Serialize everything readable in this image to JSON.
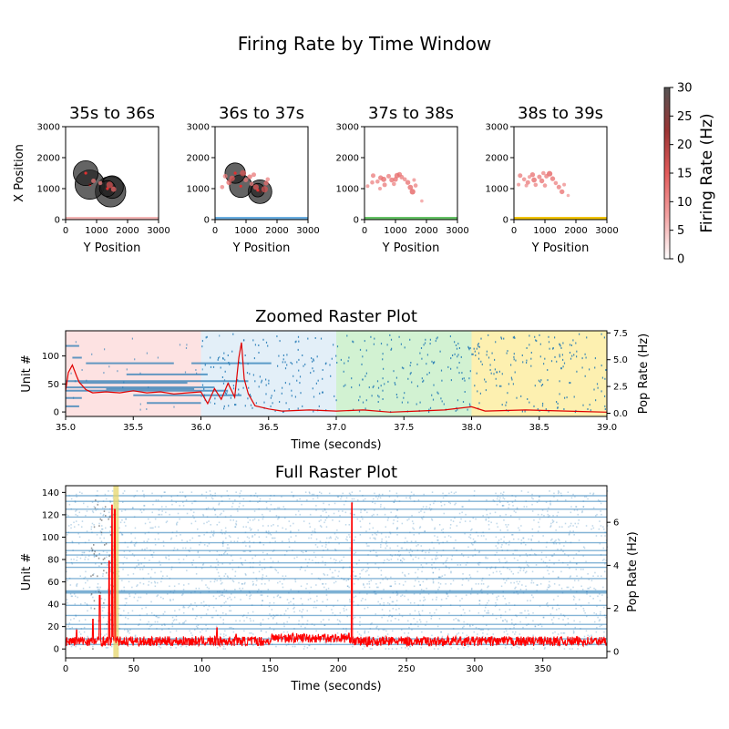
{
  "figure": {
    "title": "Firing Rate by Time Window"
  },
  "chart_data": [
    {
      "type": "scatter",
      "panel": "window-1",
      "title": "35s to 36s",
      "xlabel": "Y Position",
      "ylabel": "X Position",
      "xlim": [
        0,
        3000
      ],
      "ylim": [
        0,
        3000
      ],
      "xticks": [
        "0",
        "1000",
        "2000",
        "3000"
      ],
      "yticks": [
        "0",
        "1000",
        "2000",
        "3000"
      ],
      "band_color": "#f4b6b6",
      "points": [
        {
          "x": 650,
          "y": 1500,
          "rate": 22
        },
        {
          "x": 780,
          "y": 1130,
          "rate": 26
        },
        {
          "x": 1450,
          "y": 900,
          "rate": 27
        },
        {
          "x": 1500,
          "y": 1050,
          "rate": 20
        },
        {
          "x": 1350,
          "y": 1000,
          "rate": 14
        },
        {
          "x": 1420,
          "y": 1120,
          "rate": 9
        },
        {
          "x": 1550,
          "y": 980,
          "rate": 6
        },
        {
          "x": 900,
          "y": 1250,
          "rate": 4
        },
        {
          "x": 1120,
          "y": 1180,
          "rate": 3
        }
      ]
    },
    {
      "type": "scatter",
      "panel": "window-2",
      "title": "36s to 37s",
      "xlabel": "Y Position",
      "ylabel": "",
      "xlim": [
        0,
        3000
      ],
      "ylim": [
        0,
        3000
      ],
      "xticks": [
        "0",
        "1000",
        "2000",
        "3000"
      ],
      "yticks": [
        "0",
        "1000",
        "2000",
        "3000"
      ],
      "band_color": "#6aaee0",
      "points": [
        {
          "x": 650,
          "y": 1500,
          "rate": 18
        },
        {
          "x": 830,
          "y": 1080,
          "rate": 20
        },
        {
          "x": 1450,
          "y": 900,
          "rate": 21
        },
        {
          "x": 1380,
          "y": 950,
          "rate": 12
        },
        {
          "x": 1600,
          "y": 980,
          "rate": 9
        },
        {
          "x": 330,
          "y": 1400,
          "rate": 4
        },
        {
          "x": 230,
          "y": 1050,
          "rate": 3
        },
        {
          "x": 450,
          "y": 1200,
          "rate": 6
        },
        {
          "x": 550,
          "y": 1330,
          "rate": 7
        },
        {
          "x": 900,
          "y": 1500,
          "rate": 8
        },
        {
          "x": 1120,
          "y": 1380,
          "rate": 5
        },
        {
          "x": 1250,
          "y": 1450,
          "rate": 4
        },
        {
          "x": 1180,
          "y": 1150,
          "rate": 3
        },
        {
          "x": 1700,
          "y": 1300,
          "rate": 3
        },
        {
          "x": 990,
          "y": 1280,
          "rate": 4
        },
        {
          "x": 1650,
          "y": 1180,
          "rate": 5
        },
        {
          "x": 1320,
          "y": 1050,
          "rate": 7
        }
      ]
    },
    {
      "type": "scatter",
      "panel": "window-3",
      "title": "37s to 38s",
      "xlabel": "Y Position",
      "ylabel": "",
      "xlim": [
        0,
        3000
      ],
      "ylim": [
        0,
        3000
      ],
      "xticks": [
        "0",
        "1000",
        "2000",
        "3000"
      ],
      "yticks": [
        "0",
        "1000",
        "2000",
        "3000"
      ],
      "band_color": "#66c266",
      "points": [
        {
          "x": 100,
          "y": 1080,
          "rate": 2
        },
        {
          "x": 250,
          "y": 1200,
          "rate": 3
        },
        {
          "x": 280,
          "y": 1420,
          "rate": 4
        },
        {
          "x": 420,
          "y": 1230,
          "rate": 3
        },
        {
          "x": 520,
          "y": 1350,
          "rate": 5
        },
        {
          "x": 620,
          "y": 1300,
          "rate": 6
        },
        {
          "x": 650,
          "y": 1120,
          "rate": 4
        },
        {
          "x": 780,
          "y": 1400,
          "rate": 4
        },
        {
          "x": 880,
          "y": 1280,
          "rate": 5
        },
        {
          "x": 950,
          "y": 1150,
          "rate": 3
        },
        {
          "x": 1050,
          "y": 1420,
          "rate": 6
        },
        {
          "x": 1130,
          "y": 1460,
          "rate": 5
        },
        {
          "x": 1200,
          "y": 1370,
          "rate": 4
        },
        {
          "x": 1300,
          "y": 1300,
          "rate": 3
        },
        {
          "x": 1400,
          "y": 1200,
          "rate": 5
        },
        {
          "x": 1480,
          "y": 1040,
          "rate": 6
        },
        {
          "x": 1550,
          "y": 900,
          "rate": 7
        },
        {
          "x": 1650,
          "y": 1100,
          "rate": 3
        },
        {
          "x": 1600,
          "y": 1280,
          "rate": 2
        },
        {
          "x": 1850,
          "y": 600,
          "rate": 1
        },
        {
          "x": 500,
          "y": 1000,
          "rate": 2
        },
        {
          "x": 1000,
          "y": 1300,
          "rate": 5
        }
      ]
    },
    {
      "type": "scatter",
      "panel": "window-4",
      "title": "38s to 39s",
      "xlabel": "Y Position",
      "ylabel": "",
      "xlim": [
        0,
        3000
      ],
      "ylim": [
        0,
        3000
      ],
      "xticks": [
        "0",
        "1000",
        "2000",
        "3000"
      ],
      "yticks": [
        "0",
        "1000",
        "2000",
        "3000"
      ],
      "band_color": "#f2c400",
      "points": [
        {
          "x": 150,
          "y": 1130,
          "rate": 2
        },
        {
          "x": 200,
          "y": 1420,
          "rate": 4
        },
        {
          "x": 330,
          "y": 1300,
          "rate": 3
        },
        {
          "x": 450,
          "y": 1200,
          "rate": 4
        },
        {
          "x": 600,
          "y": 1450,
          "rate": 5
        },
        {
          "x": 650,
          "y": 1280,
          "rate": 6
        },
        {
          "x": 700,
          "y": 1120,
          "rate": 3
        },
        {
          "x": 820,
          "y": 1380,
          "rate": 4
        },
        {
          "x": 900,
          "y": 1250,
          "rate": 5
        },
        {
          "x": 1000,
          "y": 1100,
          "rate": 3
        },
        {
          "x": 1050,
          "y": 1400,
          "rate": 4
        },
        {
          "x": 1150,
          "y": 1480,
          "rate": 7
        },
        {
          "x": 1250,
          "y": 1320,
          "rate": 5
        },
        {
          "x": 1350,
          "y": 1180,
          "rate": 3
        },
        {
          "x": 1450,
          "y": 1050,
          "rate": 4
        },
        {
          "x": 1550,
          "y": 900,
          "rate": 5
        },
        {
          "x": 1620,
          "y": 1130,
          "rate": 2
        },
        {
          "x": 1750,
          "y": 780,
          "rate": 1
        },
        {
          "x": 400,
          "y": 1100,
          "rate": 2
        },
        {
          "x": 950,
          "y": 1500,
          "rate": 3
        },
        {
          "x": 500,
          "y": 1380,
          "rate": 2
        }
      ]
    },
    {
      "type": "colorbar",
      "label": "Firing Rate (Hz)",
      "range": [
        0,
        30
      ],
      "ticks": [
        "0",
        "5",
        "10",
        "15",
        "20",
        "25",
        "30"
      ],
      "colors": [
        "#ffffff",
        "#f4a3a3",
        "#e35b5b",
        "#9b3535",
        "#555555"
      ]
    },
    {
      "type": "raster",
      "panel": "zoomed",
      "title": "Zoomed Raster Plot",
      "xlabel": "Time (seconds)",
      "ylabel": "Unit #",
      "y2label": "Pop Rate (Hz)",
      "xlim": [
        35,
        39
      ],
      "ylim": [
        -8,
        145
      ],
      "y2lim": [
        -0.3,
        7.7
      ],
      "xticks": [
        "35.0",
        "35.5",
        "36.0",
        "36.5",
        "37.0",
        "37.5",
        "38.0",
        "38.5",
        "39.0"
      ],
      "yticks": [
        "0",
        "50",
        "100"
      ],
      "y2ticks": [
        "0.0",
        "2.5",
        "5.0",
        "7.5"
      ],
      "windows": [
        {
          "start": 35,
          "end": 36,
          "color": "#fde2e2"
        },
        {
          "start": 36,
          "end": 37,
          "color": "#e3eff8"
        },
        {
          "start": 37,
          "end": 38,
          "color": "#d2f2d2"
        },
        {
          "start": 38,
          "end": 39,
          "color": "#fdf0b0"
        }
      ],
      "spike_color": "#1f77b4",
      "bursts": [
        {
          "unit": 118,
          "start": 35.0,
          "end": 35.1
        },
        {
          "unit": 97,
          "start": 35.05,
          "end": 35.12
        },
        {
          "unit": 87,
          "start": 35.15,
          "end": 35.8
        },
        {
          "unit": 87,
          "start": 35.93,
          "end": 36.52
        },
        {
          "unit": 67,
          "start": 35.45,
          "end": 36.05
        },
        {
          "unit": 55,
          "start": 35.0,
          "end": 36.35
        },
        {
          "unit": 52,
          "start": 35.1,
          "end": 35.9
        },
        {
          "unit": 44,
          "start": 35.0,
          "end": 36.1
        },
        {
          "unit": 41,
          "start": 35.3,
          "end": 35.95
        },
        {
          "unit": 38,
          "start": 35.0,
          "end": 36.2
        },
        {
          "unit": 30,
          "start": 35.5,
          "end": 36.3
        },
        {
          "unit": 25,
          "start": 35.0,
          "end": 35.12
        },
        {
          "unit": 16,
          "start": 35.6,
          "end": 36.0
        },
        {
          "unit": 10,
          "start": 35.0,
          "end": 35.1
        }
      ],
      "pop_rate_color": "#e00000",
      "pop_rate": [
        [
          35.0,
          2.1
        ],
        [
          35.02,
          3.8
        ],
        [
          35.05,
          4.5
        ],
        [
          35.08,
          3.5
        ],
        [
          35.1,
          2.9
        ],
        [
          35.15,
          2.2
        ],
        [
          35.2,
          1.9
        ],
        [
          35.3,
          2.0
        ],
        [
          35.4,
          1.9
        ],
        [
          35.5,
          2.1
        ],
        [
          35.6,
          1.9
        ],
        [
          35.7,
          2.0
        ],
        [
          35.8,
          1.8
        ],
        [
          35.9,
          1.9
        ],
        [
          36.0,
          2.0
        ],
        [
          36.05,
          0.9
        ],
        [
          36.1,
          2.3
        ],
        [
          36.15,
          1.3
        ],
        [
          36.2,
          2.8
        ],
        [
          36.25,
          1.5
        ],
        [
          36.28,
          5.2
        ],
        [
          36.3,
          6.6
        ],
        [
          36.32,
          3.2
        ],
        [
          36.35,
          1.8
        ],
        [
          36.4,
          0.7
        ],
        [
          36.5,
          0.4
        ],
        [
          36.6,
          0.2
        ],
        [
          36.8,
          0.3
        ],
        [
          37.0,
          0.2
        ],
        [
          37.2,
          0.3
        ],
        [
          37.4,
          0.1
        ],
        [
          37.6,
          0.2
        ],
        [
          37.8,
          0.3
        ],
        [
          38.0,
          0.6
        ],
        [
          38.1,
          0.2
        ],
        [
          38.4,
          0.3
        ],
        [
          38.7,
          0.2
        ],
        [
          39.0,
          0.1
        ]
      ]
    },
    {
      "type": "raster",
      "panel": "full",
      "title": "Full Raster Plot",
      "xlabel": "Time (seconds)",
      "ylabel": "Unit #",
      "y2label": "Pop Rate (Hz)",
      "xlim": [
        0,
        397
      ],
      "ylim": [
        -8,
        146
      ],
      "y2lim": [
        -0.3,
        7.7
      ],
      "xticks": [
        "0",
        "50",
        "100",
        "150",
        "200",
        "250",
        "300",
        "350"
      ],
      "yticks": [
        "0",
        "20",
        "40",
        "60",
        "80",
        "100",
        "120",
        "140"
      ],
      "y2ticks": [
        "0",
        "2",
        "4",
        "6"
      ],
      "highlight": {
        "start": 35,
        "end": 39,
        "color": "#e6d56a"
      },
      "spike_color": "#1f77b4",
      "dense_units": [
        4,
        9,
        18,
        22,
        30,
        39,
        50,
        51,
        52,
        63,
        73,
        77,
        84,
        88,
        95,
        104,
        118,
        125,
        132,
        137
      ],
      "pop_rate_color": "#ff0000",
      "pop_rate_base": 0.25,
      "pop_rate_peaks": [
        [
          8,
          1.0
        ],
        [
          20,
          1.5
        ],
        [
          25,
          2.6
        ],
        [
          32,
          4.2
        ],
        [
          34,
          6.8
        ],
        [
          36,
          6.6
        ],
        [
          90,
          0.6
        ],
        [
          111,
          1.1
        ],
        [
          125,
          0.8
        ],
        [
          160,
          0.7
        ],
        [
          175,
          0.8
        ],
        [
          190,
          0.8
        ],
        [
          210,
          6.9
        ],
        [
          240,
          0.6
        ],
        [
          320,
          0.6
        ]
      ]
    }
  ]
}
